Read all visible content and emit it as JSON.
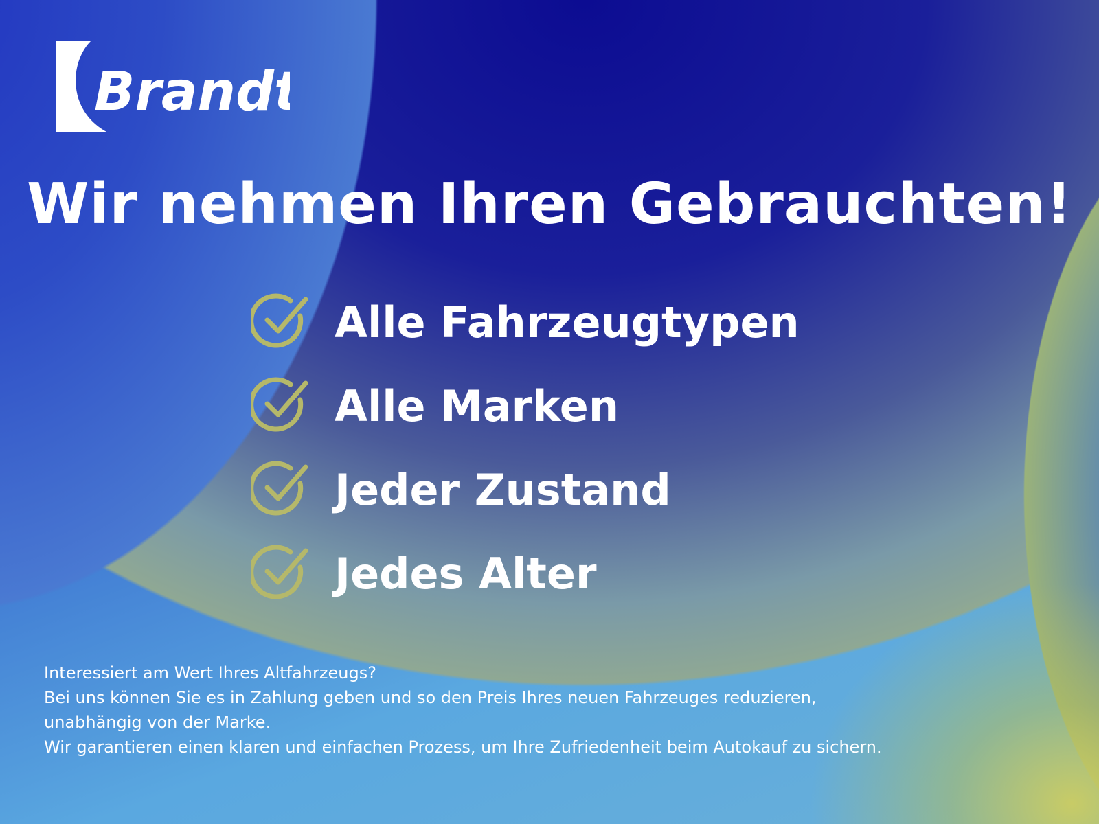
{
  "brand": {
    "logo_text": "Brandt"
  },
  "headline": "Wir nehmen Ihren Gebrauchten!",
  "features": [
    {
      "icon": "check-circle-icon",
      "label": "Alle Fahrzeugtypen"
    },
    {
      "icon": "check-circle-icon",
      "label": "Alle Marken"
    },
    {
      "icon": "check-circle-icon",
      "label": "Jeder Zustand"
    },
    {
      "icon": "check-circle-icon",
      "label": "Jedes Alter"
    }
  ],
  "body_lines": [
    "Interessiert am Wert Ihres Altfahrzeugs?",
    "Bei uns können Sie es in Zahlung geben und so den Preis Ihres neuen Fahrzeuges reduzieren,",
    "unabhängig von der Marke.",
    "Wir garantieren einen klaren und einfachen Prozess, um Ihre Zufriedenheit beim Autokauf zu sichern."
  ],
  "colors": {
    "check": "#b5b86a",
    "text": "#ffffff",
    "navy": "#0c0c92",
    "blue": "#2342c4"
  }
}
